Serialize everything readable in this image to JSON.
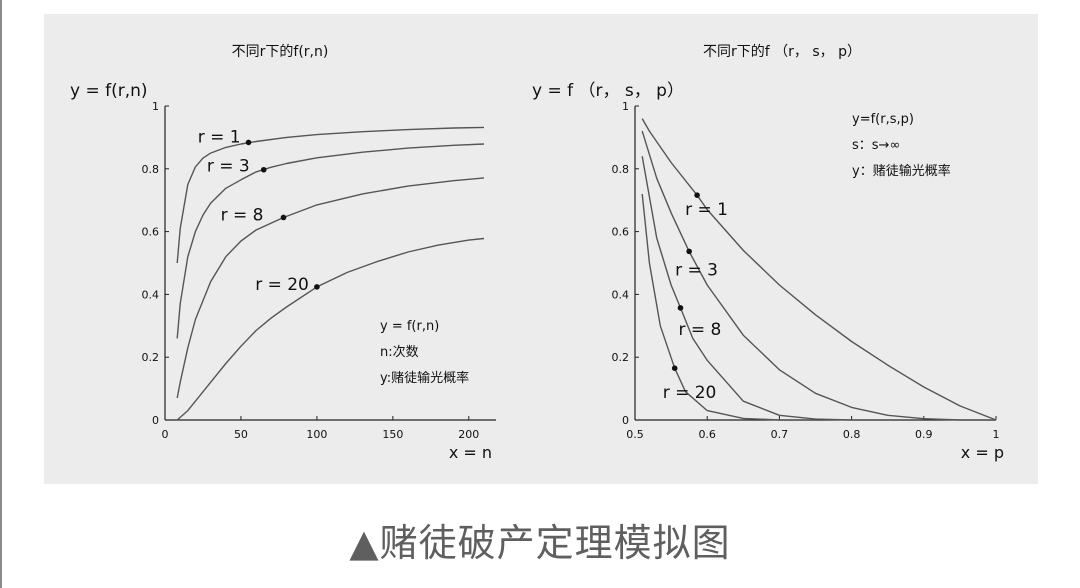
{
  "caption": "▲赌徒破产定理模拟图",
  "chart_data": [
    {
      "type": "line",
      "title": "不同r下的f(r,n)",
      "ylabel": "y = f(r,n)",
      "xlabel": "x = n",
      "xlim": [
        0,
        210
      ],
      "ylim": [
        0,
        1
      ],
      "xticks": [
        "0",
        "50",
        "100",
        "150",
        "200"
      ],
      "yticks": [
        "0",
        "0.2",
        "0.4",
        "0.6",
        "0.8",
        "1"
      ],
      "legend_lines": [
        "y = f(r,n)",
        "n:次数",
        "y:赌徒输光概率"
      ],
      "series": [
        {
          "name": "r = 1",
          "marker": [
            55,
            0.884
          ],
          "x": [
            8,
            10,
            15,
            20,
            25,
            30,
            40,
            50,
            60,
            80,
            100,
            130,
            160,
            190,
            210
          ],
          "y": [
            0.5,
            0.61,
            0.75,
            0.806,
            0.834,
            0.85,
            0.868,
            0.879,
            0.887,
            0.9,
            0.909,
            0.918,
            0.925,
            0.93,
            0.932
          ]
        },
        {
          "name": "r = 3",
          "marker": [
            65,
            0.797
          ],
          "x": [
            8,
            10,
            15,
            20,
            25,
            30,
            40,
            50,
            60,
            70,
            80,
            100,
            130,
            160,
            190,
            210
          ],
          "y": [
            0.26,
            0.37,
            0.52,
            0.6,
            0.653,
            0.69,
            0.738,
            0.765,
            0.79,
            0.805,
            0.817,
            0.835,
            0.853,
            0.866,
            0.875,
            0.879
          ]
        },
        {
          "name": "r = 8",
          "marker": [
            78,
            0.645
          ],
          "x": [
            8,
            10,
            15,
            20,
            30,
            40,
            50,
            60,
            78,
            100,
            130,
            160,
            190,
            210
          ],
          "y": [
            0.07,
            0.12,
            0.23,
            0.32,
            0.44,
            0.52,
            0.57,
            0.605,
            0.645,
            0.685,
            0.72,
            0.745,
            0.762,
            0.771
          ]
        },
        {
          "name": "r = 20",
          "marker": [
            100,
            0.424
          ],
          "x": [
            8,
            15,
            20,
            30,
            40,
            50,
            60,
            70,
            80,
            100,
            120,
            140,
            160,
            180,
            200,
            210
          ],
          "y": [
            0.0,
            0.03,
            0.06,
            0.12,
            0.18,
            0.235,
            0.285,
            0.325,
            0.36,
            0.424,
            0.47,
            0.505,
            0.535,
            0.557,
            0.573,
            0.578
          ]
        }
      ]
    },
    {
      "type": "line",
      "title": "不同r下的f （r， s， p）",
      "ylabel": "y = f （r， s， p）",
      "xlabel": "x = p",
      "xlim": [
        0.5,
        1
      ],
      "ylim": [
        0,
        1
      ],
      "xticks": [
        "0.5",
        "0.6",
        "0.7",
        "0.8",
        "0.9",
        "1"
      ],
      "yticks": [
        "0",
        "0.2",
        "0.4",
        "0.6",
        "0.8",
        "1"
      ],
      "legend_lines": [
        "y=f(r,s,p)",
        "s：s→∞",
        "y：赌徒输光概率"
      ],
      "series": [
        {
          "name": "r = 1",
          "marker": [
            0.586,
            0.716
          ],
          "x": [
            0.51,
            0.52,
            0.55,
            0.586,
            0.6,
            0.65,
            0.7,
            0.75,
            0.8,
            0.85,
            0.9,
            0.95,
            1.0
          ],
          "y": [
            0.96,
            0.92,
            0.82,
            0.716,
            0.67,
            0.54,
            0.43,
            0.335,
            0.25,
            0.175,
            0.105,
            0.045,
            0.0
          ]
        },
        {
          "name": "r = 3",
          "marker": [
            0.575,
            0.537
          ],
          "x": [
            0.51,
            0.53,
            0.55,
            0.575,
            0.6,
            0.65,
            0.7,
            0.75,
            0.8,
            0.85,
            0.9,
            0.95,
            1.0
          ],
          "y": [
            0.92,
            0.77,
            0.66,
            0.537,
            0.43,
            0.27,
            0.16,
            0.085,
            0.04,
            0.015,
            0.004,
            0.0,
            0.0
          ]
        },
        {
          "name": "r = 8",
          "marker": [
            0.563,
            0.357
          ],
          "x": [
            0.51,
            0.53,
            0.55,
            0.563,
            0.58,
            0.6,
            0.65,
            0.7,
            0.75,
            0.8,
            0.85
          ],
          "y": [
            0.84,
            0.58,
            0.43,
            0.357,
            0.26,
            0.19,
            0.06,
            0.015,
            0.003,
            0.0,
            0.0
          ]
        },
        {
          "name": "r = 20",
          "marker": [
            0.555,
            0.165
          ],
          "x": [
            0.51,
            0.52,
            0.535,
            0.555,
            0.57,
            0.6,
            0.65,
            0.7,
            0.75
          ],
          "y": [
            0.72,
            0.5,
            0.3,
            0.165,
            0.09,
            0.03,
            0.005,
            0.0,
            0.0
          ]
        }
      ]
    }
  ]
}
